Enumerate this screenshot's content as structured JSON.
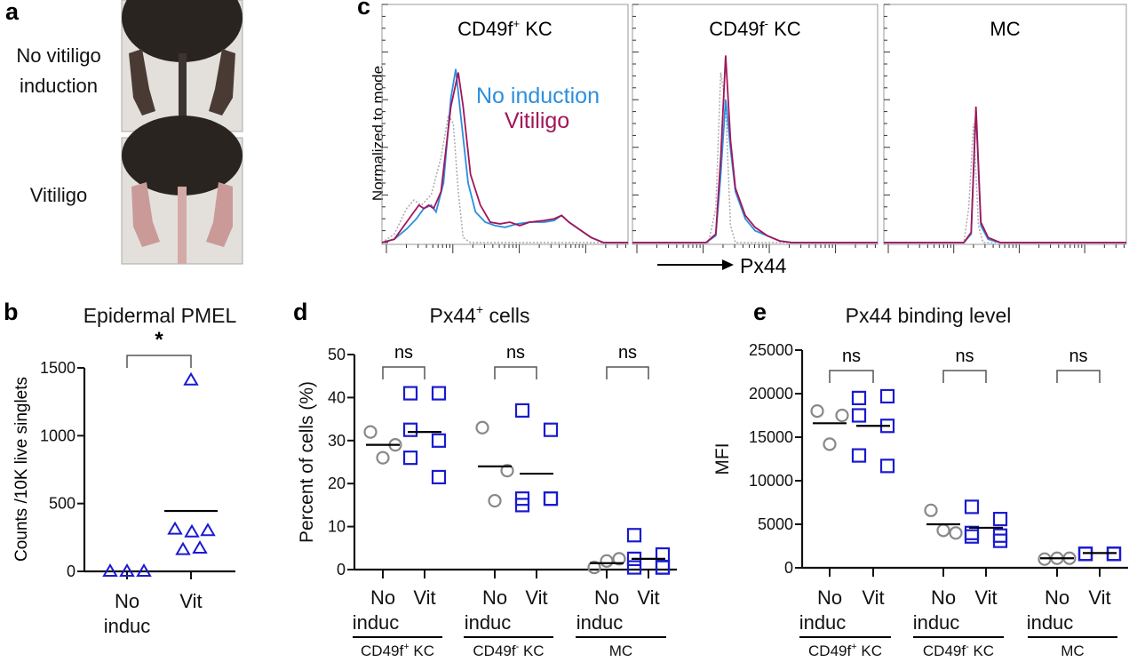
{
  "panel_letters": {
    "a": "a",
    "b": "b",
    "c": "c",
    "d": "d",
    "e": "e"
  },
  "panel_a": {
    "row1_line1": "No vitiligo",
    "row1_line2": "induction",
    "row2": "Vitiligo"
  },
  "colors": {
    "no_induction_hist": "#2b8fe0",
    "vitiligo_hist": "#a3155a",
    "isotype_hist": "#aaaaaa",
    "no_induction_marker": "#888888",
    "vitiligo_marker": "#1a1ad0",
    "axis": "#111111"
  },
  "chart_data": [
    {
      "id": "c",
      "type": "line",
      "ylabel": "Normalized to mode",
      "xlabel": "Px44",
      "ylim": [
        0,
        140
      ],
      "legend": {
        "no_induction": "No induction",
        "vitiligo": "Vitiligo",
        "placement": "inside-top-right of first panel"
      },
      "panels": [
        {
          "title_main": "CD49f",
          "title_sup": "+",
          "title_rest": " KC",
          "no_induction": [
            [
              0,
              0
            ],
            [
              5,
              2
            ],
            [
              10,
              8
            ],
            [
              14,
              14
            ],
            [
              17,
              20
            ],
            [
              20,
              22
            ],
            [
              22,
              18
            ],
            [
              25,
              35
            ],
            [
              28,
              85
            ],
            [
              30,
              102
            ],
            [
              32,
              75
            ],
            [
              35,
              35
            ],
            [
              38,
              18
            ],
            [
              42,
              12
            ],
            [
              46,
              10
            ],
            [
              50,
              9
            ],
            [
              55,
              11
            ],
            [
              60,
              12
            ],
            [
              66,
              12
            ],
            [
              70,
              13
            ],
            [
              73,
              16
            ],
            [
              76,
              12
            ],
            [
              80,
              8
            ],
            [
              85,
              3
            ],
            [
              90,
              0
            ],
            [
              100,
              0
            ]
          ],
          "vitiligo": [
            [
              0,
              0
            ],
            [
              5,
              2
            ],
            [
              10,
              12
            ],
            [
              13,
              18
            ],
            [
              15,
              22
            ],
            [
              17,
              20
            ],
            [
              19,
              22
            ],
            [
              21,
              20
            ],
            [
              24,
              30
            ],
            [
              28,
              80
            ],
            [
              31,
              100
            ],
            [
              33,
              80
            ],
            [
              36,
              40
            ],
            [
              40,
              22
            ],
            [
              44,
              12
            ],
            [
              48,
              11
            ],
            [
              52,
              12
            ],
            [
              56,
              10
            ],
            [
              60,
              12
            ],
            [
              66,
              13
            ],
            [
              70,
              14
            ],
            [
              73,
              16
            ],
            [
              76,
              12
            ],
            [
              80,
              8
            ],
            [
              85,
              3
            ],
            [
              90,
              0
            ],
            [
              100,
              0
            ]
          ],
          "isotype": [
            [
              0,
              0
            ],
            [
              5,
              5
            ],
            [
              10,
              20
            ],
            [
              13,
              25
            ],
            [
              16,
              22
            ],
            [
              20,
              28
            ],
            [
              24,
              50
            ],
            [
              27,
              75
            ],
            [
              29,
              70
            ],
            [
              31,
              30
            ],
            [
              33,
              3
            ],
            [
              36,
              0
            ],
            [
              100,
              0
            ]
          ]
        },
        {
          "title_main": "CD49f",
          "title_sup": "-",
          "title_rest": " KC",
          "no_induction": [
            [
              0,
              0
            ],
            [
              30,
              0
            ],
            [
              34,
              4
            ],
            [
              36,
              40
            ],
            [
              38,
              84
            ],
            [
              40,
              55
            ],
            [
              42,
              30
            ],
            [
              46,
              14
            ],
            [
              50,
              7
            ],
            [
              55,
              4
            ],
            [
              60,
              1
            ],
            [
              65,
              0
            ],
            [
              100,
              0
            ]
          ],
          "vitiligo": [
            [
              0,
              0
            ],
            [
              30,
              0
            ],
            [
              34,
              5
            ],
            [
              36,
              50
            ],
            [
              38,
              110
            ],
            [
              40,
              60
            ],
            [
              42,
              32
            ],
            [
              46,
              16
            ],
            [
              50,
              9
            ],
            [
              55,
              4
            ],
            [
              60,
              1
            ],
            [
              65,
              0
            ],
            [
              100,
              0
            ]
          ],
          "isotype": [
            [
              0,
              0
            ],
            [
              31,
              0
            ],
            [
              34,
              20
            ],
            [
              36,
              100
            ],
            [
              38,
              80
            ],
            [
              40,
              10
            ],
            [
              42,
              0
            ],
            [
              100,
              0
            ]
          ]
        },
        {
          "title_main": "MC",
          "title_sup": "",
          "title_rest": "",
          "no_induction": [
            [
              0,
              0
            ],
            [
              33,
              0
            ],
            [
              36,
              5
            ],
            [
              38,
              78
            ],
            [
              40,
              10
            ],
            [
              43,
              2
            ],
            [
              48,
              0
            ],
            [
              100,
              0
            ]
          ],
          "vitiligo": [
            [
              0,
              0
            ],
            [
              33,
              0
            ],
            [
              36,
              6
            ],
            [
              38,
              80
            ],
            [
              40,
              12
            ],
            [
              43,
              3
            ],
            [
              48,
              0
            ],
            [
              100,
              0
            ]
          ],
          "isotype": [
            [
              0,
              0
            ],
            [
              33,
              0
            ],
            [
              35,
              20
            ],
            [
              37,
              70
            ],
            [
              39,
              10
            ],
            [
              41,
              0
            ],
            [
              100,
              0
            ]
          ]
        }
      ]
    },
    {
      "id": "b",
      "type": "scatter",
      "title": "Epidermal PMEL",
      "ylabel": "Counts /10K live singlets",
      "ylim": [
        0,
        1500
      ],
      "yticks": [
        "0",
        "500",
        "1000",
        "1500"
      ],
      "categories": [
        {
          "line1": "No",
          "line2": "induc"
        },
        {
          "line1": "Vit",
          "line2": ""
        }
      ],
      "values": [
        [
          0,
          0,
          0
        ],
        [
          1410,
          310,
          290,
          300,
          160,
          170
        ]
      ],
      "means": [
        0,
        445
      ],
      "significance": "*"
    },
    {
      "id": "d",
      "type": "scatter",
      "title_main": "Px44",
      "title_sup": "+",
      "title_rest": " cells",
      "ylabel": "Percent of cells (%)",
      "ylim": [
        0,
        50
      ],
      "yticks": [
        "0",
        "10",
        "20",
        "30",
        "40",
        "50"
      ],
      "category_no": {
        "line1": "No",
        "line2": "induc"
      },
      "category_vit": "Vit",
      "groups": [
        {
          "name_main": "CD49f",
          "name_sup": "+",
          "name_rest": " KC",
          "significance": "ns",
          "no_induction": [
            32,
            29,
            26
          ],
          "no_mean": 29,
          "vitiligo": [
            41,
            41,
            32.5,
            30,
            26,
            21.5
          ],
          "vit_mean": 32
        },
        {
          "name_main": "CD49f",
          "name_sup": "-",
          "name_rest": " KC",
          "significance": "ns",
          "no_induction": [
            33,
            23,
            16
          ],
          "no_mean": 24,
          "vitiligo": [
            37,
            32.5,
            15,
            16.5,
            16.5,
            16.5
          ],
          "vit_mean": 22.3
        },
        {
          "name_main": "MC",
          "name_sup": "",
          "name_rest": "",
          "significance": "ns",
          "no_induction": [
            0.5,
            2.5,
            2
          ],
          "no_mean": 1.5,
          "vitiligo": [
            8,
            3.5,
            2.5,
            0.5,
            0.5,
            0.5
          ],
          "vit_mean": 2.5
        }
      ]
    },
    {
      "id": "e",
      "type": "scatter",
      "title_main": "Px44 binding level",
      "title_sup": "",
      "title_rest": "",
      "ylabel": "MFI",
      "ylim": [
        0,
        25000
      ],
      "yticks": [
        "0",
        "5000",
        "10000",
        "15000",
        "20000",
        "25000"
      ],
      "category_no": {
        "line1": "No",
        "line2": "induc"
      },
      "category_vit": "Vit",
      "groups": [
        {
          "name_main": "CD49f",
          "name_sup": "+",
          "name_rest": " KC",
          "significance": "ns",
          "no_induction": [
            18000,
            17500,
            14200
          ],
          "no_mean": 16600,
          "vitiligo": [
            19500,
            19700,
            17500,
            16300,
            12900,
            11700
          ],
          "vit_mean": 16300
        },
        {
          "name_main": "CD49f",
          "name_sup": "-",
          "name_rest": " KC",
          "significance": "ns",
          "no_induction": [
            6600,
            4000,
            4300
          ],
          "no_mean": 5000,
          "vitiligo": [
            7000,
            5600,
            4000,
            3100,
            3600,
            3700
          ],
          "vit_mean": 4600
        },
        {
          "name_main": "MC",
          "name_sup": "",
          "name_rest": "",
          "significance": "ns",
          "no_induction": [
            1000,
            1100,
            1100
          ],
          "no_mean": 1100,
          "vitiligo": [
            1600,
            1600,
            1600,
            1600,
            1600,
            1600
          ],
          "vit_mean": 1700
        }
      ]
    }
  ]
}
